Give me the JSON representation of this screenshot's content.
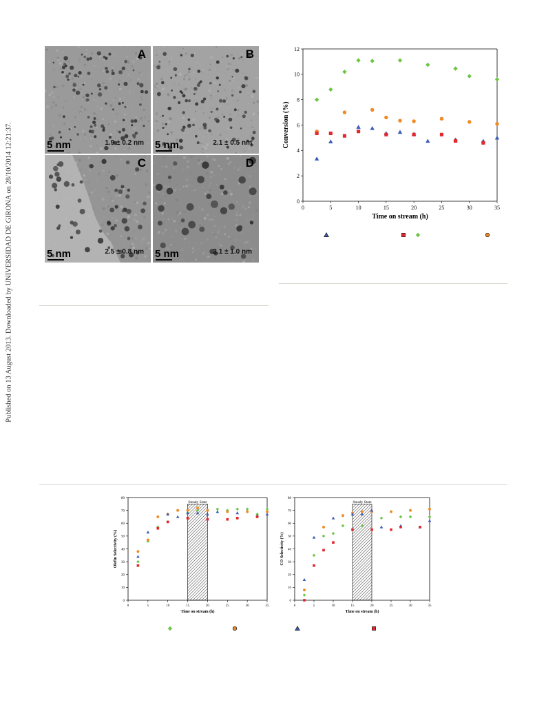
{
  "side_note": "Published on 13 August 2013. Downloaded by UNIVERSIDAD DE GIRONA on 28/10/2014 12:21:37.",
  "tem": {
    "panels": [
      {
        "letter": "A",
        "scale": "5 nm",
        "size": "1.9 ± 0.2 nm"
      },
      {
        "letter": "B",
        "scale": "5 nm",
        "size": "2.1 ± 0.5 nm"
      },
      {
        "letter": "C",
        "scale": "5 nm",
        "size": "2.5 ± 0.8 nm"
      },
      {
        "letter": "D",
        "scale": "5 nm",
        "size": "3.1 ± 1.0 nm"
      }
    ]
  },
  "colors": {
    "green": "#6cc644",
    "orange": "#f08a24",
    "blue": "#3d5bb8",
    "red": "#e0292f"
  },
  "chart_data": [
    {
      "type": "scatter",
      "title": "",
      "xlabel": "Time on stream (h)",
      "ylabel": "Conversion (%)",
      "xlim": [
        0,
        35
      ],
      "ylim": [
        0,
        12
      ],
      "xticks": [
        0,
        5,
        10,
        15,
        20,
        25,
        30,
        35
      ],
      "yticks": [
        0,
        2,
        4,
        6,
        8,
        10,
        12
      ],
      "series": [
        {
          "marker": "diamond",
          "color": "#6cc644",
          "x": [
            2.5,
            5,
            7.5,
            10,
            12.5,
            17.5,
            22.5,
            27.5,
            30,
            35
          ],
          "y": [
            8.0,
            8.8,
            10.2,
            11.1,
            11.05,
            11.1,
            10.75,
            10.45,
            9.85,
            9.6
          ]
        },
        {
          "marker": "circle",
          "color": "#f08a24",
          "x": [
            2.5,
            7.5,
            12.5,
            15,
            17.5,
            20,
            25,
            30,
            35
          ],
          "y": [
            5.5,
            7.0,
            7.2,
            6.6,
            6.35,
            6.3,
            6.5,
            6.25,
            6.1
          ]
        },
        {
          "marker": "triangle",
          "color": "#3d5bb8",
          "x": [
            2.5,
            5,
            10,
            12.5,
            15,
            17.5,
            20,
            22.5,
            27.5,
            32.5,
            35
          ],
          "y": [
            3.35,
            4.7,
            5.85,
            5.75,
            5.35,
            5.45,
            5.3,
            4.75,
            4.85,
            4.75,
            5.0
          ]
        },
        {
          "marker": "square",
          "color": "#e0292f",
          "x": [
            2.5,
            5,
            7.5,
            10,
            15,
            20,
            25,
            27.5,
            32.5
          ],
          "y": [
            5.35,
            5.35,
            5.15,
            5.5,
            5.25,
            5.25,
            5.25,
            4.75,
            4.6
          ]
        }
      ],
      "legend": {
        "placement": "bottom",
        "markers": [
          "triangle",
          "square",
          "diamond",
          "circle"
        ]
      }
    },
    {
      "type": "scatter",
      "title": "",
      "xlabel": "Time on stream (h)",
      "ylabel": "Olefin Selectivity (%)",
      "xlim": [
        0,
        35
      ],
      "ylim": [
        0,
        80
      ],
      "xticks": [
        0,
        5,
        10,
        15,
        20,
        25,
        30,
        35
      ],
      "yticks": [
        0,
        10,
        20,
        30,
        40,
        50,
        60,
        70,
        80
      ],
      "annotation": {
        "label": "Steady State",
        "x_from": 15,
        "x_to": 20
      },
      "series": [
        {
          "marker": "diamond",
          "color": "#6cc644",
          "x": [
            2.5,
            5,
            7.5,
            10,
            12.5,
            15,
            17.5,
            20,
            22.5,
            25,
            27.5,
            30,
            32.5,
            35
          ],
          "y": [
            30,
            46,
            57,
            67,
            70,
            68,
            70,
            70,
            71,
            70,
            71,
            71,
            67,
            71
          ]
        },
        {
          "marker": "circle",
          "color": "#f08a24",
          "x": [
            2.5,
            5,
            7.5,
            10,
            12.5,
            15,
            17.5,
            20,
            25,
            27.5,
            30,
            35
          ],
          "y": [
            38,
            47,
            65,
            67,
            70,
            70,
            72,
            70,
            69,
            64,
            69,
            69
          ]
        },
        {
          "marker": "triangle",
          "color": "#3d5bb8",
          "x": [
            2.5,
            5,
            10,
            12.5,
            15,
            17.5,
            20,
            22.5,
            27.5,
            32.5,
            35
          ],
          "y": [
            34,
            53,
            67,
            65,
            68,
            68,
            67,
            69,
            68,
            66,
            67
          ]
        },
        {
          "marker": "square",
          "color": "#e0292f",
          "x": [
            2.5,
            7.5,
            10,
            15,
            20,
            25,
            27.5,
            32.5
          ],
          "y": [
            27,
            56,
            61,
            64,
            63,
            63,
            64,
            65
          ]
        }
      ],
      "legend": {
        "placement": "bottom",
        "markers": [
          "diamond",
          "circle",
          "triangle",
          "square"
        ]
      }
    },
    {
      "type": "scatter",
      "title": "",
      "xlabel": "Time on stream (h)",
      "ylabel": "CO Selectivity (%)",
      "xlim": [
        0,
        35
      ],
      "ylim": [
        0,
        80
      ],
      "xticks": [
        0,
        5,
        10,
        15,
        20,
        25,
        30,
        35
      ],
      "yticks": [
        0,
        10,
        20,
        30,
        40,
        50,
        60,
        70,
        80
      ],
      "annotation": {
        "label": "Steady State",
        "x_from": 15,
        "x_to": 20
      },
      "series": [
        {
          "marker": "diamond",
          "color": "#6cc644",
          "x": [
            2.5,
            5,
            7.5,
            10,
            12.5,
            17.5,
            22.5,
            27.5,
            30,
            35
          ],
          "y": [
            4,
            35,
            50,
            52,
            58,
            58,
            64,
            65,
            65,
            65
          ]
        },
        {
          "marker": "circle",
          "color": "#f08a24",
          "x": [
            2.5,
            7.5,
            12.5,
            15,
            17.5,
            20,
            25,
            30,
            35
          ],
          "y": [
            8,
            57,
            66,
            68,
            69,
            69,
            69,
            70,
            71
          ]
        },
        {
          "marker": "triangle",
          "color": "#3d5bb8",
          "x": [
            2.5,
            5,
            10,
            15,
            17.5,
            20,
            22.5,
            27.5,
            32.5,
            35
          ],
          "y": [
            16,
            49,
            64,
            67,
            67,
            70,
            57,
            58,
            57,
            62
          ]
        },
        {
          "marker": "square",
          "color": "#e0292f",
          "x": [
            2.5,
            5,
            7.5,
            10,
            15,
            20,
            25,
            27.5,
            32.5
          ],
          "y": [
            0,
            27,
            39,
            45,
            55,
            55,
            55,
            57,
            57
          ]
        }
      ],
      "legend": {
        "placement": "bottom",
        "markers": [
          "diamond",
          "circle",
          "triangle",
          "square"
        ]
      }
    }
  ]
}
